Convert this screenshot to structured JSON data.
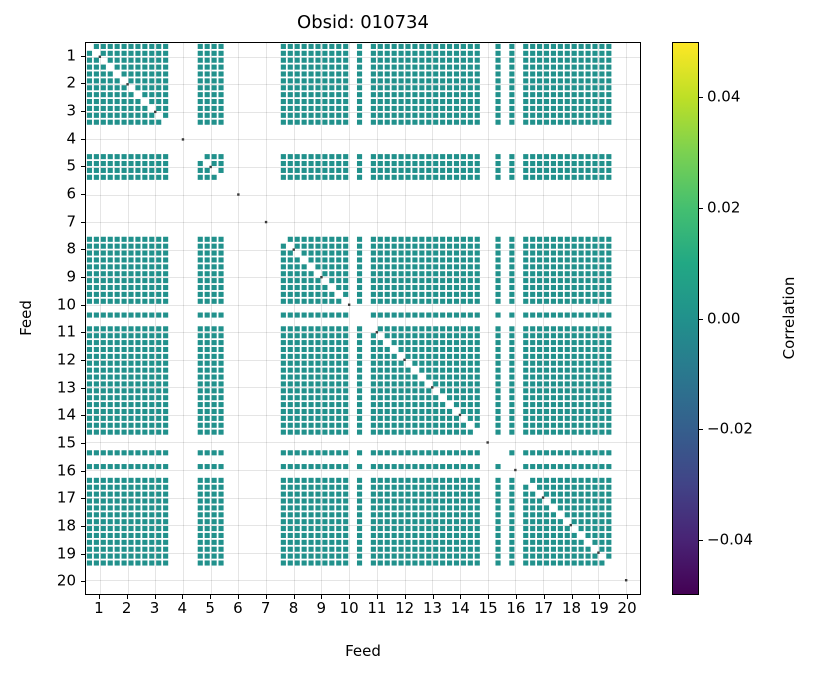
{
  "chart_data": {
    "type": "heatmap",
    "title": "Obsid: 010734",
    "xlabel": "Feed",
    "ylabel": "Feed",
    "x_ticks": [
      "1",
      "2",
      "3",
      "4",
      "5",
      "6",
      "7",
      "8",
      "9",
      "10",
      "11",
      "12",
      "13",
      "14",
      "15",
      "16",
      "17",
      "18",
      "19",
      "20"
    ],
    "y_ticks": [
      "1",
      "2",
      "3",
      "4",
      "5",
      "6",
      "7",
      "8",
      "9",
      "10",
      "11",
      "12",
      "13",
      "14",
      "15",
      "16",
      "17",
      "18",
      "19",
      "20"
    ],
    "n_feeds": 20,
    "bands_per_feed": 4,
    "cell_value": 0.0,
    "cell_color_at_zero": "#21918c",
    "diagonal": "masked",
    "missing_feeds": [
      4,
      6,
      7,
      20
    ],
    "partial_missing_bands": {
      "10": [
        3
      ],
      "11": [
        1
      ],
      "15": [
        2,
        3
      ],
      "16": [
        1,
        3
      ]
    },
    "grid": true,
    "grid_color": "rgba(0,0,0,0.10)",
    "marker_color": "#3a3a3a",
    "clim": [
      -0.05,
      0.05
    ],
    "colorbar": {
      "label": "Correlation",
      "colormap": "viridis",
      "ticks": [
        {
          "label": "0.04",
          "value": 0.04
        },
        {
          "label": "0.02",
          "value": 0.02
        },
        {
          "label": "0.00",
          "value": 0.0
        },
        {
          "label": "−0.02",
          "value": -0.02
        },
        {
          "label": "−0.04",
          "value": -0.04
        }
      ],
      "gradient_stops": [
        "#440154",
        "#482475",
        "#414487",
        "#355f8d",
        "#2a788e",
        "#21918c",
        "#22a884",
        "#44bf70",
        "#7ad151",
        "#bddf26",
        "#fde725"
      ]
    }
  }
}
